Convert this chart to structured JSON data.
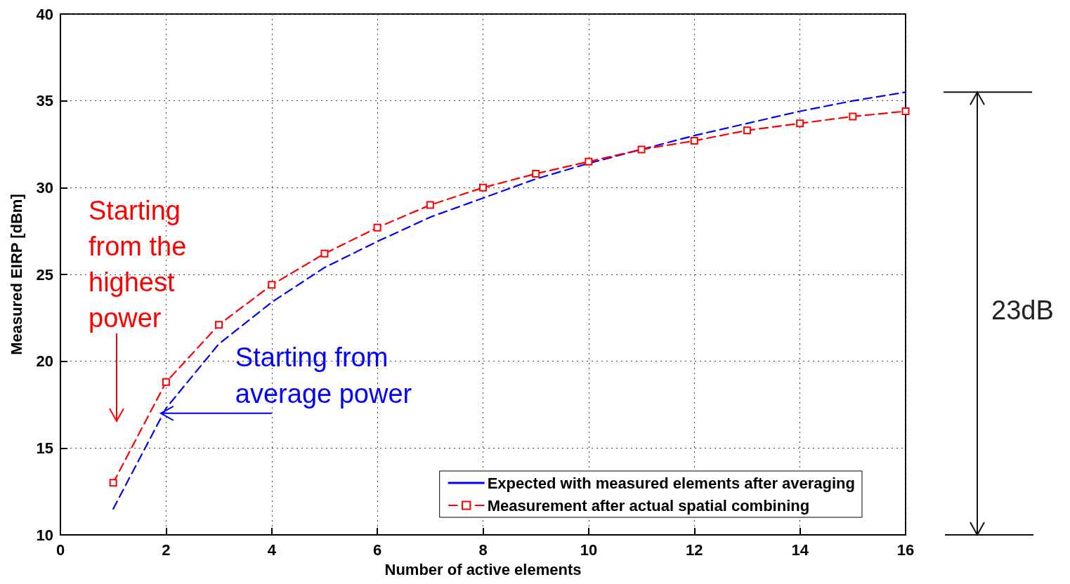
{
  "chart_data": {
    "type": "line",
    "xlabel": "Number of active elements",
    "ylabel": "Measured EIRP [dBm]",
    "x": [
      1,
      2,
      3,
      4,
      5,
      6,
      7,
      8,
      9,
      10,
      11,
      12,
      13,
      14,
      15,
      16
    ],
    "series": [
      {
        "name": "Expected with measured elements after averaging",
        "color": "#0000ff",
        "marker": "none",
        "values": [
          11.5,
          17.3,
          21.0,
          23.4,
          25.4,
          26.9,
          28.3,
          29.4,
          30.5,
          31.4,
          32.2,
          33.0,
          33.7,
          34.4,
          35.0,
          35.5
        ]
      },
      {
        "name": "Measurement after actual spatial combining",
        "color": "#ff0000",
        "marker": "square",
        "values": [
          13.0,
          18.8,
          22.1,
          24.4,
          26.2,
          27.7,
          29.0,
          30.0,
          30.8,
          31.5,
          32.2,
          32.7,
          33.3,
          33.7,
          34.1,
          34.4
        ]
      }
    ],
    "line_style": "dashed",
    "xlim": [
      0,
      16
    ],
    "xticks": [
      0,
      2,
      4,
      6,
      8,
      10,
      12,
      14,
      16
    ],
    "ylim": [
      10,
      40
    ],
    "yticks": [
      10,
      15,
      20,
      25,
      30,
      35,
      40
    ],
    "grid": true,
    "legend": "bottom right",
    "annotations": [
      "Starting from the highest power",
      {
        "text": "Starting from average power",
        "x": 1.9,
        "y": 17.0
      },
      "23dB"
    ]
  }
}
